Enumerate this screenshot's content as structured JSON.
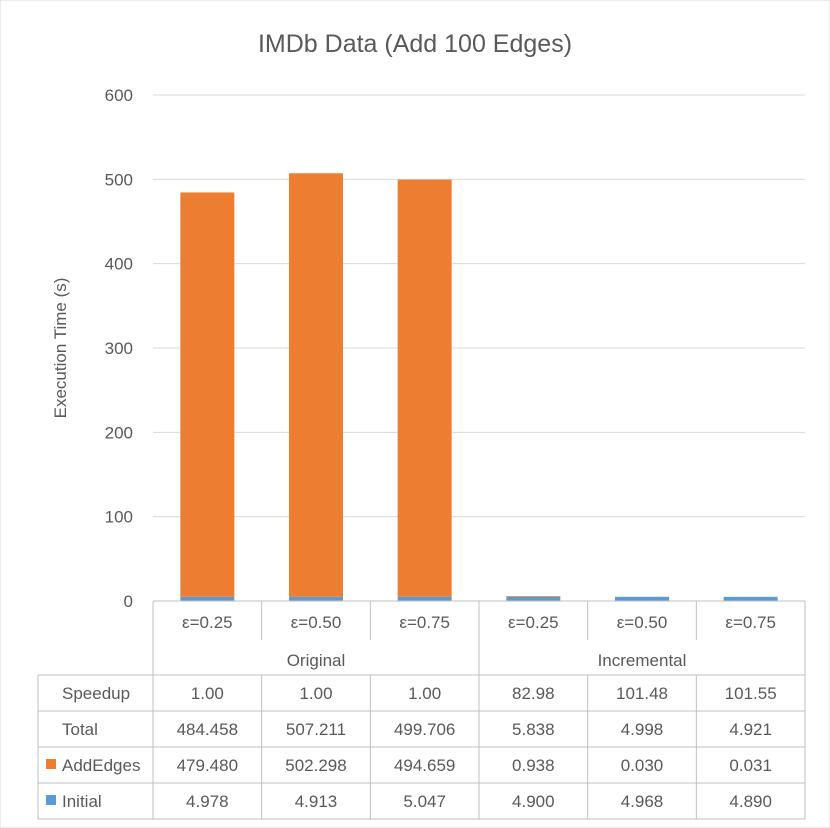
{
  "chart_data": {
    "type": "bar",
    "stacked": true,
    "title": "IMDb Data (Add 100 Edges)",
    "ylabel": "Execution Time (s)",
    "ylim": [
      0,
      600
    ],
    "yticks": [
      0,
      100,
      200,
      300,
      400,
      500,
      600
    ],
    "grid": true,
    "categories": [
      "ε=0.25",
      "ε=0.50",
      "ε=0.75",
      "ε=0.25",
      "ε=0.50",
      "ε=0.75"
    ],
    "groups": [
      {
        "label": "Original",
        "span": 3
      },
      {
        "label": "Incremental",
        "span": 3
      }
    ],
    "series": [
      {
        "name": "Initial",
        "color": "#5B9BD5",
        "values": [
          4.978,
          4.913,
          5.047,
          4.9,
          4.968,
          4.89
        ]
      },
      {
        "name": "AddEdges",
        "color": "#ED7D31",
        "values": [
          479.48,
          502.298,
          494.659,
          0.938,
          0.03,
          0.031
        ]
      }
    ],
    "table": {
      "rows": [
        {
          "label": "Speedup",
          "values": [
            "1.00",
            "1.00",
            "1.00",
            "82.98",
            "101.48",
            "101.55"
          ]
        },
        {
          "label": "Total",
          "values": [
            "484.458",
            "507.211",
            "499.706",
            "5.838",
            "4.998",
            "4.921"
          ]
        },
        {
          "label": "AddEdges",
          "legend_color": "#ED7D31",
          "values": [
            "479.480",
            "502.298",
            "494.659",
            "0.938",
            "0.030",
            "0.031"
          ]
        },
        {
          "label": "Initial",
          "legend_color": "#5B9BD5",
          "values": [
            "4.978",
            "4.913",
            "5.047",
            "4.900",
            "4.968",
            "4.890"
          ]
        }
      ]
    }
  }
}
